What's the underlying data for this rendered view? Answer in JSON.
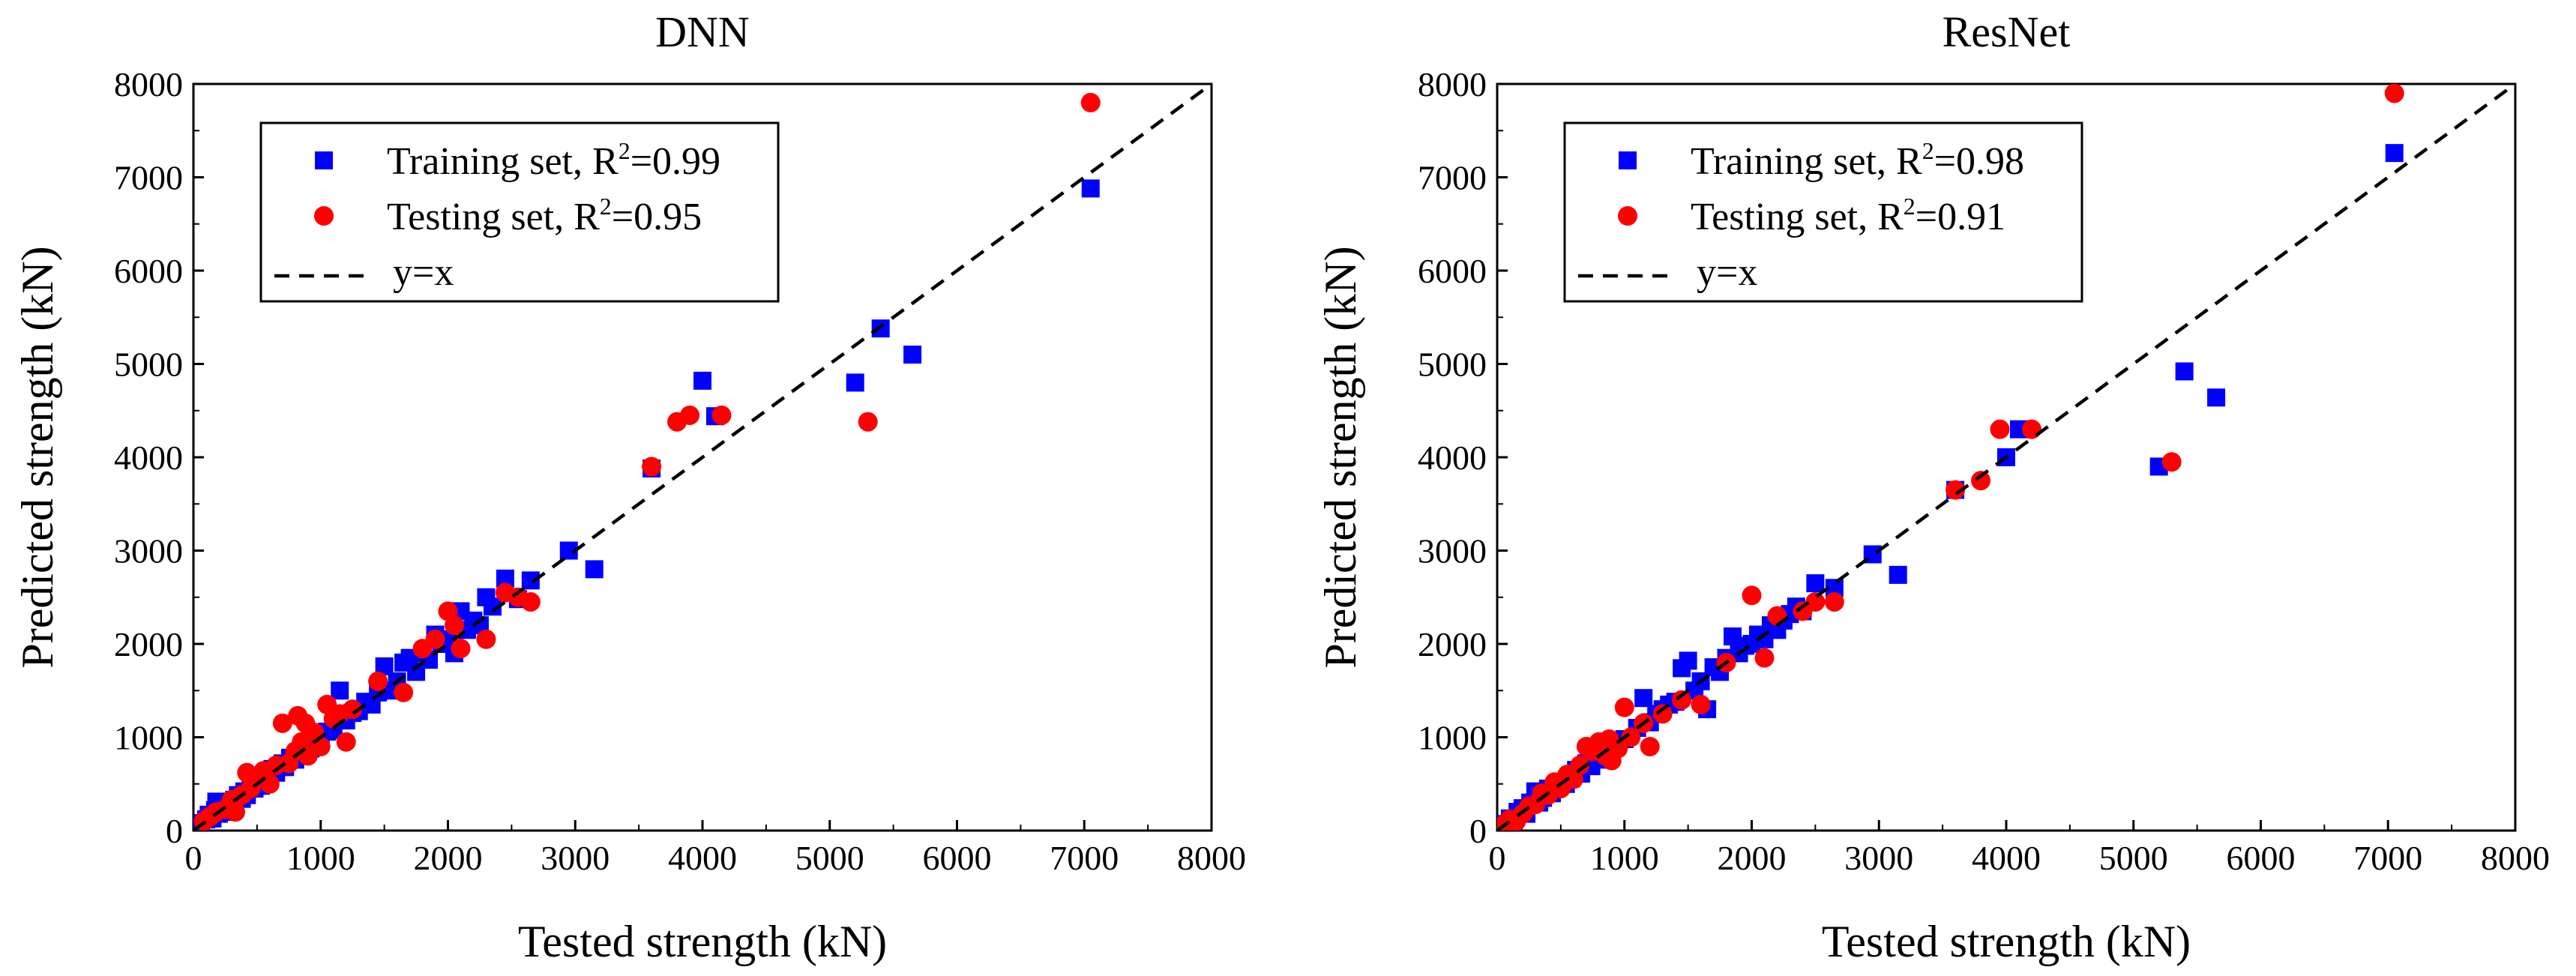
{
  "chart_data": [
    {
      "type": "scatter",
      "title": "DNN",
      "xlabel": "Tested strength (kN)",
      "ylabel": "Predicted strength (kN)",
      "xlim": [
        0,
        8000
      ],
      "ylim": [
        0,
        8000
      ],
      "xticks": [
        "0",
        "1000",
        "2000",
        "3000",
        "4000",
        "5000",
        "6000",
        "7000",
        "8000"
      ],
      "yticks": [
        "0",
        "1000",
        "2000",
        "3000",
        "4000",
        "5000",
        "6000",
        "7000",
        "8000"
      ],
      "legend_position": "top-left",
      "legend": [
        {
          "label": "Training set, R",
          "sup": "2",
          "value": "=0.99",
          "marker": "square",
          "color": "#0000ff"
        },
        {
          "label": "Testing set, R",
          "sup": "2",
          "value": "=0.95",
          "marker": "circle",
          "color": "#ff0000"
        },
        {
          "label": "y=x",
          "marker": "dashed-line",
          "color": "#000000"
        }
      ],
      "series": [
        {
          "name": "Training set",
          "color": "#0000ff",
          "marker": "square",
          "points": [
            [
              60,
              80
            ],
            [
              100,
              120
            ],
            [
              120,
              170
            ],
            [
              150,
              130
            ],
            [
              170,
              220
            ],
            [
              180,
              310
            ],
            [
              200,
              180
            ],
            [
              220,
              250
            ],
            [
              250,
              200
            ],
            [
              270,
              300
            ],
            [
              300,
              260
            ],
            [
              320,
              330
            ],
            [
              350,
              380
            ],
            [
              380,
              340
            ],
            [
              400,
              420
            ],
            [
              420,
              380
            ],
            [
              450,
              500
            ],
            [
              480,
              450
            ],
            [
              500,
              520
            ],
            [
              530,
              480
            ],
            [
              560,
              600
            ],
            [
              600,
              560
            ],
            [
              620,
              660
            ],
            [
              650,
              620
            ],
            [
              700,
              720
            ],
            [
              720,
              680
            ],
            [
              760,
              780
            ],
            [
              800,
              760
            ],
            [
              850,
              820
            ],
            [
              880,
              900
            ],
            [
              920,
              880
            ],
            [
              960,
              960
            ],
            [
              1000,
              980
            ],
            [
              1050,
              1060
            ],
            [
              1100,
              1080
            ],
            [
              1150,
              1500
            ],
            [
              1200,
              1180
            ],
            [
              1250,
              1260
            ],
            [
              1300,
              1280
            ],
            [
              1350,
              1380
            ],
            [
              1400,
              1350
            ],
            [
              1450,
              1480
            ],
            [
              1500,
              1760
            ],
            [
              1550,
              1500
            ],
            [
              1600,
              1600
            ],
            [
              1650,
              1800
            ],
            [
              1700,
              1850
            ],
            [
              1750,
              1700
            ],
            [
              1800,
              1900
            ],
            [
              1850,
              1830
            ],
            [
              1900,
              2100
            ],
            [
              1950,
              2000
            ],
            [
              2000,
              2050
            ],
            [
              2050,
              1900
            ],
            [
              2100,
              2350
            ],
            [
              2150,
              2150
            ],
            [
              2200,
              2250
            ],
            [
              2250,
              2200
            ],
            [
              2300,
              2500
            ],
            [
              2350,
              2400
            ],
            [
              2450,
              2700
            ],
            [
              2550,
              2480
            ],
            [
              2650,
              2680
            ],
            [
              2950,
              3000
            ],
            [
              3150,
              2800
            ],
            [
              3600,
              3880
            ],
            [
              4000,
              4820
            ],
            [
              4100,
              4440
            ],
            [
              5200,
              4800
            ],
            [
              5400,
              5380
            ],
            [
              5650,
              5100
            ],
            [
              7050,
              6880
            ]
          ]
        },
        {
          "name": "Testing set",
          "color": "#ff0000",
          "marker": "circle",
          "points": [
            [
              80,
              100
            ],
            [
              130,
              150
            ],
            [
              180,
              200
            ],
            [
              250,
              230
            ],
            [
              300,
              330
            ],
            [
              330,
              200
            ],
            [
              380,
              380
            ],
            [
              420,
              620
            ],
            [
              450,
              450
            ],
            [
              500,
              560
            ],
            [
              550,
              640
            ],
            [
              600,
              500
            ],
            [
              650,
              700
            ],
            [
              700,
              1150
            ],
            [
              750,
              720
            ],
            [
              800,
              850
            ],
            [
              820,
              1230
            ],
            [
              850,
              950
            ],
            [
              880,
              1150
            ],
            [
              900,
              800
            ],
            [
              950,
              1050
            ],
            [
              1000,
              900
            ],
            [
              1050,
              1350
            ],
            [
              1100,
              1200
            ],
            [
              1150,
              1250
            ],
            [
              1200,
              950
            ],
            [
              1250,
              1300
            ],
            [
              1450,
              1600
            ],
            [
              1650,
              1480
            ],
            [
              1800,
              1950
            ],
            [
              1900,
              2050
            ],
            [
              2000,
              2350
            ],
            [
              2050,
              2200
            ],
            [
              2100,
              1950
            ],
            [
              2300,
              2050
            ],
            [
              2450,
              2550
            ],
            [
              2550,
              2500
            ],
            [
              2650,
              2450
            ],
            [
              3600,
              3900
            ],
            [
              3800,
              4380
            ],
            [
              3900,
              4450
            ],
            [
              4150,
              4450
            ],
            [
              5300,
              4380
            ],
            [
              7050,
              7800
            ]
          ]
        }
      ],
      "reference_line": {
        "label": "y=x",
        "from": [
          0,
          0
        ],
        "to": [
          8000,
          8000
        ]
      }
    },
    {
      "type": "scatter",
      "title": "ResNet",
      "xlabel": "Tested strength (kN)",
      "ylabel": "Predicted strength (kN)",
      "xlim": [
        0,
        8000
      ],
      "ylim": [
        0,
        8000
      ],
      "xticks": [
        "0",
        "1000",
        "2000",
        "3000",
        "4000",
        "5000",
        "6000",
        "7000",
        "8000"
      ],
      "yticks": [
        "0",
        "1000",
        "2000",
        "3000",
        "4000",
        "5000",
        "6000",
        "7000",
        "8000"
      ],
      "legend_position": "top-left",
      "legend": [
        {
          "label": "Training set, R",
          "sup": "2",
          "value": "=0.98",
          "marker": "square",
          "color": "#0000ff"
        },
        {
          "label": "Testing set, R",
          "sup": "2",
          "value": "=0.91",
          "marker": "circle",
          "color": "#ff0000"
        },
        {
          "label": "y=x",
          "marker": "dashed-line",
          "color": "#000000"
        }
      ],
      "series": [
        {
          "name": "Training set",
          "color": "#0000ff",
          "marker": "square",
          "points": [
            [
              60,
              70
            ],
            [
              100,
              130
            ],
            [
              130,
              110
            ],
            [
              160,
              200
            ],
            [
              200,
              240
            ],
            [
              230,
              180
            ],
            [
              260,
              300
            ],
            [
              300,
              420
            ],
            [
              330,
              300
            ],
            [
              360,
              350
            ],
            [
              400,
              450
            ],
            [
              430,
              400
            ],
            [
              460,
              480
            ],
            [
              500,
              520
            ],
            [
              540,
              500
            ],
            [
              580,
              560
            ],
            [
              620,
              650
            ],
            [
              660,
              610
            ],
            [
              700,
              720
            ],
            [
              740,
              690
            ],
            [
              780,
              800
            ],
            [
              820,
              760
            ],
            [
              860,
              850
            ],
            [
              900,
              880
            ],
            [
              950,
              940
            ],
            [
              1000,
              980
            ],
            [
              1100,
              1100
            ],
            [
              1150,
              1420
            ],
            [
              1200,
              1160
            ],
            [
              1250,
              1250
            ],
            [
              1300,
              1300
            ],
            [
              1350,
              1350
            ],
            [
              1400,
              1380
            ],
            [
              1450,
              1740
            ],
            [
              1500,
              1820
            ],
            [
              1550,
              1500
            ],
            [
              1600,
              1600
            ],
            [
              1650,
              1300
            ],
            [
              1700,
              1750
            ],
            [
              1750,
              1700
            ],
            [
              1800,
              1850
            ],
            [
              1850,
              2080
            ],
            [
              1900,
              1900
            ],
            [
              1950,
              1980
            ],
            [
              2000,
              2000
            ],
            [
              2050,
              2100
            ],
            [
              2100,
              2050
            ],
            [
              2150,
              2200
            ],
            [
              2200,
              2150
            ],
            [
              2250,
              2250
            ],
            [
              2300,
              2320
            ],
            [
              2350,
              2400
            ],
            [
              2400,
              2350
            ],
            [
              2500,
              2650
            ],
            [
              2650,
              2600
            ],
            [
              2950,
              2960
            ],
            [
              3150,
              2740
            ],
            [
              3600,
              3650
            ],
            [
              4000,
              4000
            ],
            [
              4100,
              4300
            ],
            [
              5200,
              3900
            ],
            [
              5400,
              4920
            ],
            [
              5650,
              4640
            ],
            [
              7050,
              7260
            ]
          ]
        },
        {
          "name": "Testing set",
          "color": "#ff0000",
          "marker": "circle",
          "points": [
            [
              50,
              60
            ],
            [
              100,
              120
            ],
            [
              150,
              100
            ],
            [
              200,
              180
            ],
            [
              250,
              260
            ],
            [
              300,
              280
            ],
            [
              350,
              400
            ],
            [
              400,
              380
            ],
            [
              450,
              520
            ],
            [
              500,
              450
            ],
            [
              550,
              600
            ],
            [
              600,
              550
            ],
            [
              650,
              700
            ],
            [
              700,
              900
            ],
            [
              750,
              850
            ],
            [
              800,
              950
            ],
            [
              850,
              800
            ],
            [
              880,
              980
            ],
            [
              900,
              750
            ],
            [
              950,
              880
            ],
            [
              1000,
              1320
            ],
            [
              1050,
              1000
            ],
            [
              1150,
              1150
            ],
            [
              1200,
              900
            ],
            [
              1300,
              1250
            ],
            [
              1450,
              1400
            ],
            [
              1600,
              1350
            ],
            [
              1800,
              1800
            ],
            [
              2000,
              2520
            ],
            [
              2100,
              1850
            ],
            [
              2200,
              2300
            ],
            [
              2400,
              2350
            ],
            [
              2500,
              2450
            ],
            [
              2650,
              2450
            ],
            [
              3600,
              3650
            ],
            [
              3800,
              3750
            ],
            [
              3950,
              4300
            ],
            [
              4200,
              4300
            ],
            [
              5300,
              3950
            ],
            [
              7050,
              7900
            ]
          ]
        }
      ],
      "reference_line": {
        "label": "y=x",
        "from": [
          0,
          0
        ],
        "to": [
          8000,
          8000
        ]
      }
    }
  ]
}
